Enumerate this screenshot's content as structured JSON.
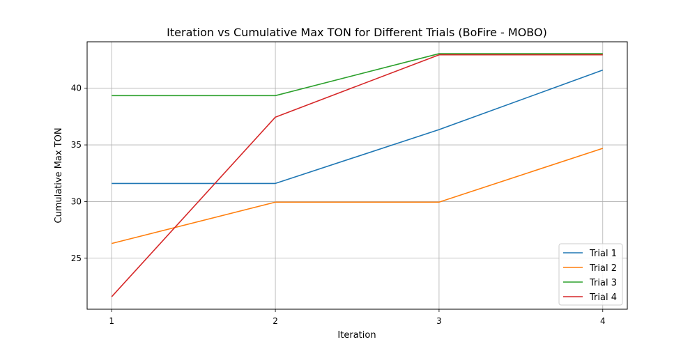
{
  "chart_data": {
    "type": "line",
    "title": "Iteration vs Cumulative Max TON for Different Trials (BoFire - MOBO)",
    "xlabel": "Iteration",
    "ylabel": "Cumulative Max TON",
    "x": [
      1,
      2,
      3,
      4
    ],
    "x_ticks": [
      "1",
      "2",
      "3",
      "4"
    ],
    "y_ticks": [
      "25",
      "30",
      "35",
      "40"
    ],
    "xlim": [
      0.85,
      4.15
    ],
    "ylim": [
      20.5,
      44.1
    ],
    "grid": true,
    "legend_position": "lower-right",
    "series": [
      {
        "name": "Trial 1",
        "color": "#1f77b4",
        "values": [
          31.6,
          31.6,
          36.35,
          41.6
        ]
      },
      {
        "name": "Trial 2",
        "color": "#ff7f0e",
        "values": [
          26.3,
          29.95,
          29.95,
          34.7
        ]
      },
      {
        "name": "Trial 3",
        "color": "#2ca02c",
        "values": [
          39.35,
          39.35,
          43.05,
          43.05
        ]
      },
      {
        "name": "Trial 4",
        "color": "#d62728",
        "values": [
          21.6,
          37.45,
          42.95,
          42.95
        ]
      }
    ]
  }
}
